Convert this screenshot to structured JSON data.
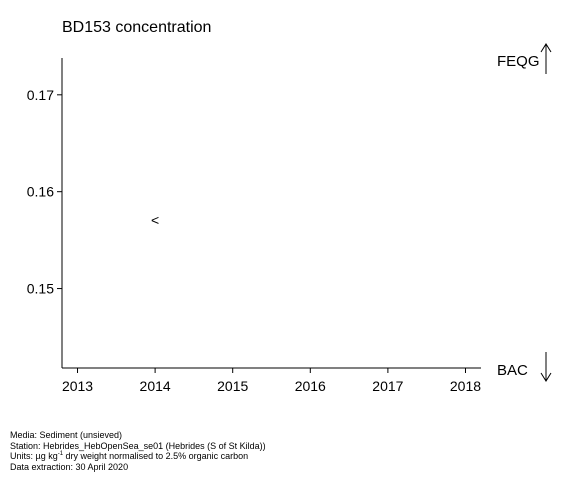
{
  "chart_data": {
    "type": "scatter",
    "title": "BD153 concentration",
    "xlabel": "",
    "ylabel": "",
    "x_ticks": [
      2013,
      2014,
      2015,
      2016,
      2017,
      2018
    ],
    "y_ticks": [
      0.15,
      0.16,
      0.17
    ],
    "y_tick_labels": [
      "0.15",
      "0.16",
      "0.17"
    ],
    "xlim": [
      2012.8,
      2018.2
    ],
    "ylim": [
      0.1418,
      0.1738
    ],
    "grid": false,
    "series": [
      {
        "marker": "<",
        "points": [
          {
            "x": 2014,
            "y": 0.157
          }
        ]
      }
    ],
    "reference_labels": [
      {
        "label": "FEQG",
        "position": "top",
        "arrow": "up"
      },
      {
        "label": "BAC",
        "position": "bottom",
        "arrow": "down"
      }
    ]
  },
  "footer": {
    "media": "Media: Sediment (unsieved)",
    "station": "Station: Hebrides_HebOpenSea_se01 (Hebrides (S of St Kilda))",
    "units_prefix": "Units:  µg kg",
    "units_sup": "-1",
    "units_suffix": " dry weight normalised to 2.5% organic carbon",
    "extraction": "Data extraction: 30 April 2020"
  }
}
